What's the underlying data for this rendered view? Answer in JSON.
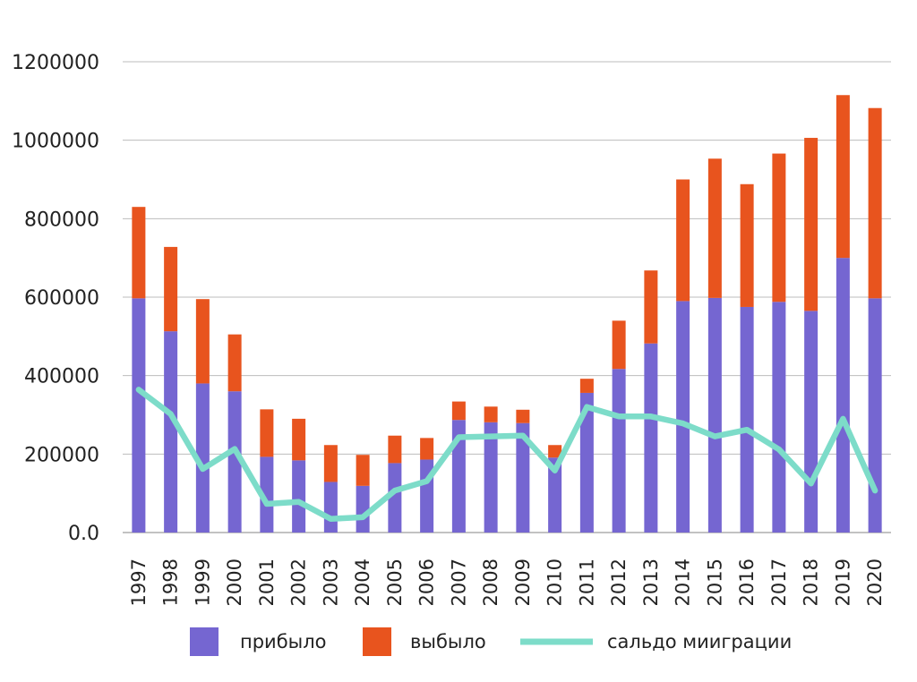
{
  "chart_data": {
    "type": "bar",
    "stacked": true,
    "categories": [
      "1997",
      "1998",
      "1999",
      "2000",
      "2001",
      "2002",
      "2003",
      "2004",
      "2005",
      "2006",
      "2007",
      "2008",
      "2009",
      "2010",
      "2011",
      "2012",
      "2013",
      "2014",
      "2015",
      "2016",
      "2017",
      "2018",
      "2019",
      "2020"
    ],
    "series": [
      {
        "name": "прибыло",
        "kind": "bar",
        "color": "#7566d1",
        "values": [
          597000,
          513000,
          380000,
          360000,
          193000,
          184000,
          129000,
          119000,
          177000,
          186000,
          287000,
          281000,
          279000,
          191000,
          356000,
          417000,
          482000,
          590000,
          598000,
          575000,
          588000,
          565000,
          700000,
          597000
        ]
      },
      {
        "name": "выбыло",
        "kind": "bar",
        "color": "#e8541e",
        "values": [
          233000,
          215000,
          215000,
          145000,
          121000,
          106000,
          94000,
          79000,
          70000,
          55000,
          47000,
          40000,
          34000,
          32000,
          36000,
          123000,
          186000,
          310000,
          355000,
          313000,
          378000,
          441000,
          415000,
          485000
        ]
      },
      {
        "name": "сальдо миигрaции",
        "kind": "line",
        "color": "#7ddcc9",
        "values": [
          364000,
          302000,
          162000,
          213000,
          73000,
          78000,
          35000,
          39000,
          107000,
          131000,
          243000,
          245000,
          247000,
          158000,
          320000,
          296000,
          296000,
          278000,
          245000,
          262000,
          212000,
          125000,
          290000,
          107000
        ]
      }
    ],
    "yticks": [
      "0.0",
      "200000",
      "400000",
      "600000",
      "800000",
      "1000000",
      "1200000"
    ],
    "ylim": [
      0,
      1200000
    ],
    "xlabel": "",
    "ylabel": "",
    "grid": true,
    "legend_position": "bottom"
  }
}
